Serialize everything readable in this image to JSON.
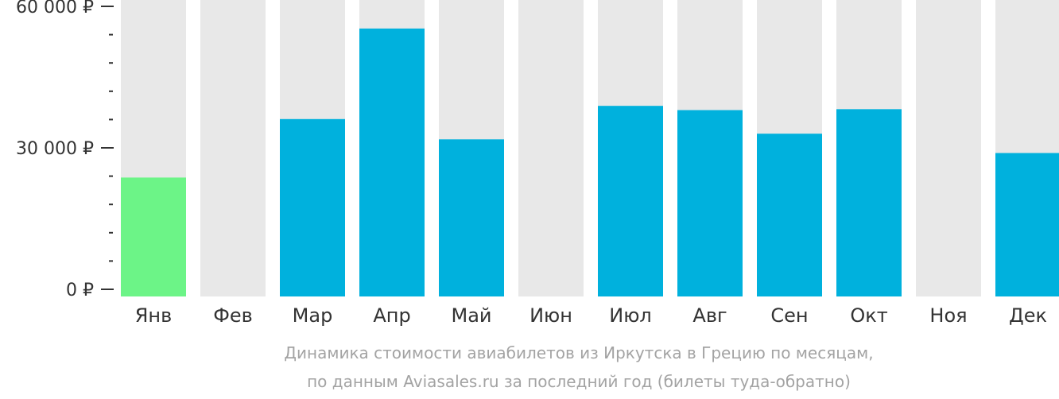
{
  "chart_data": {
    "type": "bar",
    "categories": [
      "Янв",
      "Фев",
      "Мар",
      "Апр",
      "Май",
      "Июн",
      "Июл",
      "Авг",
      "Сен",
      "Окт",
      "Ноя",
      "Дек"
    ],
    "values": [
      23700,
      null,
      36100,
      55300,
      31800,
      null,
      38900,
      38000,
      33000,
      38200,
      null,
      28900
    ],
    "highlight_category": "Янв",
    "ylim": [
      0,
      62000
    ],
    "yticks": [
      {
        "value": 0,
        "label": "0 ₽"
      },
      {
        "value": 30000,
        "label": "30 000 ₽"
      },
      {
        "value": 60000,
        "label": "60 000 ₽"
      }
    ],
    "minor_tick_step": 6000,
    "colors": {
      "bar": "#00b1dd",
      "highlight": "#6cf487",
      "background_bar": "#e8e8e8",
      "axis_text": "#333333",
      "caption": "#a3a3a3"
    }
  },
  "caption": {
    "line1": "Динамика стоимости авиабилетов из Иркутска в Грецию по месяцам,",
    "line2": "по данным Aviasales.ru за последний год (билеты туда-обратно)"
  }
}
